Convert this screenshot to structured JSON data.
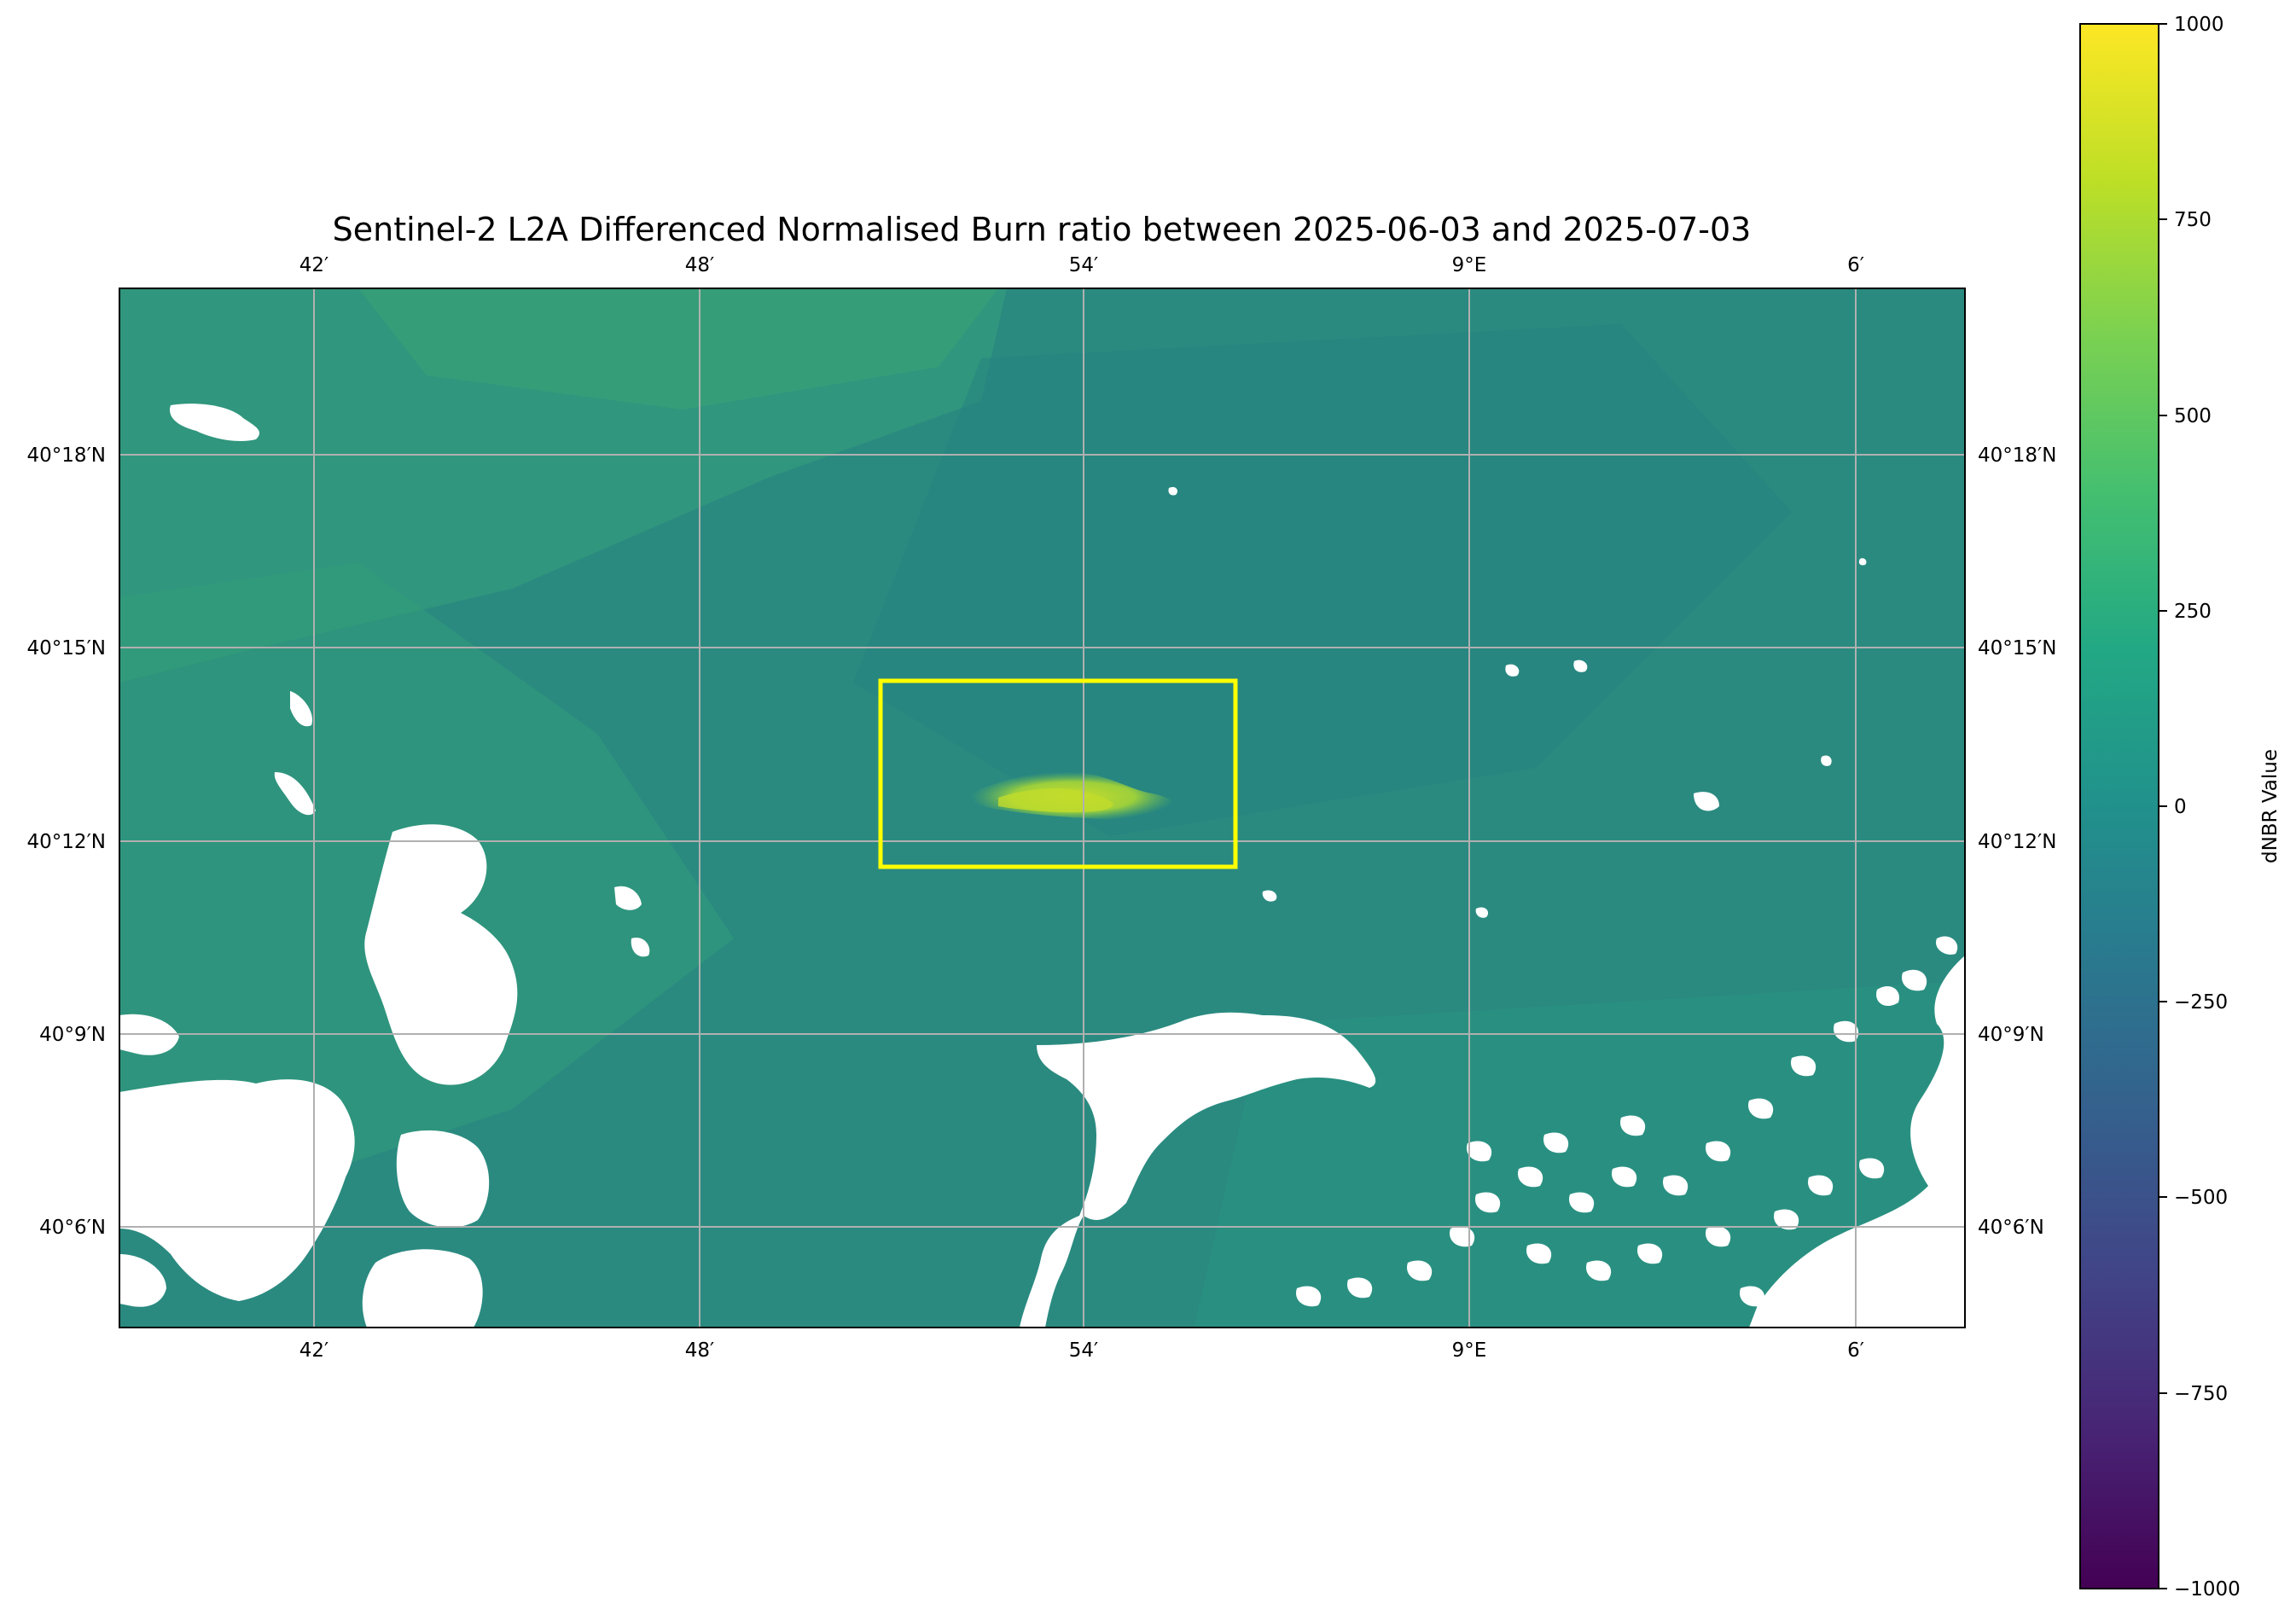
{
  "map": {
    "title": "Sentinel-2 L2A Differenced Normalised Burn ratio between 2025-06-03 and 2025-07-03",
    "lon_ticks": [
      "42′",
      "48′",
      "54′",
      "9°E",
      "6′"
    ],
    "lat_ticks": [
      "40°18′N",
      "40°15′N",
      "40°12′N",
      "40°9′N",
      "40°6′N"
    ],
    "gridlines": true,
    "highlight_box_color": "#ffff00",
    "nodata_color": "#ffffff"
  },
  "colorbar": {
    "label": "dNBR Value",
    "colormap": "viridis",
    "range": [
      -1000,
      1000
    ],
    "ticks": [
      "1000",
      "750",
      "500",
      "250",
      "0",
      "−250",
      "−500",
      "−750",
      "−1000"
    ]
  }
}
